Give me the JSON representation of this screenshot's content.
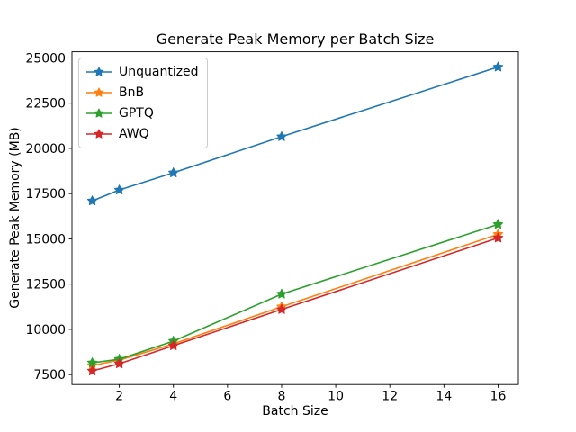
{
  "figure": {
    "title": "Generate Peak Memory per Batch Size",
    "xlabel": "Batch Size",
    "ylabel": "Generate Peak Memory (MB)"
  },
  "chart_data": {
    "type": "line",
    "title": "Generate Peak Memory per Batch Size",
    "xlabel": "Batch Size",
    "ylabel": "Generate Peak Memory (MB)",
    "x": [
      1,
      2,
      4,
      8,
      16
    ],
    "series": [
      {
        "name": "Unquantized",
        "color": "#1f77b4",
        "marker": "star",
        "values": [
          17100,
          17700,
          18650,
          20650,
          24500
        ]
      },
      {
        "name": "BnB",
        "color": "#ff7f0e",
        "marker": "star",
        "values": [
          8000,
          8300,
          9200,
          11250,
          15250
        ]
      },
      {
        "name": "GPTQ",
        "color": "#2ca02c",
        "marker": "star",
        "values": [
          8150,
          8350,
          9350,
          11950,
          15800
        ]
      },
      {
        "name": "AWQ",
        "color": "#d62728",
        "marker": "star",
        "values": [
          7700,
          8100,
          9100,
          11100,
          15050
        ]
      }
    ],
    "xticks": [
      2,
      4,
      6,
      8,
      10,
      12,
      14,
      16
    ],
    "yticks": [
      7500,
      10000,
      12500,
      15000,
      17500,
      20000,
      22500,
      25000
    ],
    "xlim": [
      0.25,
      16.75
    ],
    "ylim": [
      6950,
      25340
    ],
    "grid": false,
    "legend_position": "upper-left",
    "axes_color": "#000000",
    "background": "#ffffff"
  }
}
